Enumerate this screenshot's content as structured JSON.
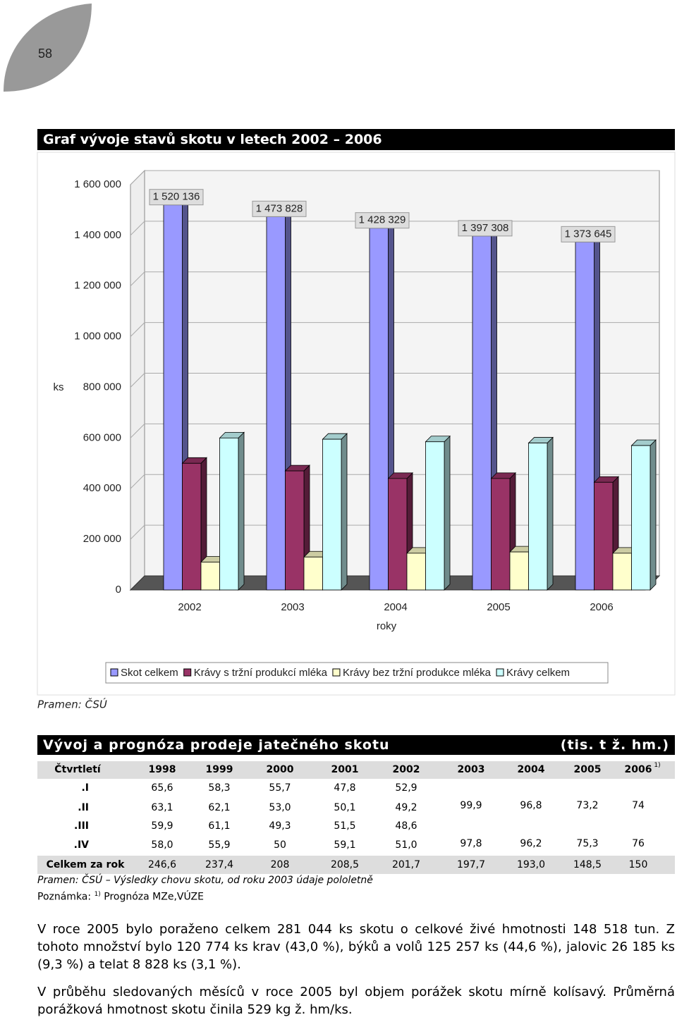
{
  "page_number": "58",
  "chart_heading": "Graf vývoje stavů skotu v letech 2002 – 2006",
  "chart_data": {
    "type": "bar",
    "y_label": "ks",
    "x_label": "roky",
    "categories": [
      "2002",
      "2003",
      "2004",
      "2005",
      "2006"
    ],
    "series": [
      {
        "name": "Skot celkem",
        "color": "#9999ff",
        "values": [
          1520136,
          1473828,
          1428329,
          1397308,
          1373645
        ],
        "value_labels": [
          "1 520 136",
          "1 473 828",
          "1 428 329",
          "1 397 308",
          "1 373 645"
        ]
      },
      {
        "name": "Krávy s tržní produkcí mléka",
        "color": "#993366",
        "values": [
          500000,
          470000,
          440000,
          440000,
          425000
        ]
      },
      {
        "name": "Krávy bez tržní produkce mléka",
        "color": "#ffffcc",
        "values": [
          110000,
          130000,
          145000,
          150000,
          145000
        ]
      },
      {
        "name": "Krávy celkem",
        "color": "#ccffff",
        "values": [
          600000,
          595000,
          585000,
          580000,
          570000
        ]
      }
    ],
    "ylim": [
      0,
      1600000
    ],
    "yticks": [
      0,
      {
        "value": 200000,
        "label": "200 000"
      },
      {
        "value": 400000,
        "label": "400 000"
      },
      {
        "value": 600000,
        "label": "600 000"
      },
      {
        "value": 800000,
        "label": "800 000"
      },
      {
        "value": 1000000,
        "label": "1 000 000"
      },
      {
        "value": 1200000,
        "label": "1 200 000"
      },
      {
        "value": 1400000,
        "label": "1 400 000"
      },
      {
        "value": 1600000,
        "label": "1 600 000"
      }
    ],
    "grid": true,
    "legend": "bottom"
  },
  "chart_source": "Pramen: ČSÚ",
  "table": {
    "title": "Vývoj a prognóza prodeje jatečného skotu",
    "unit": "(tis. t ž. hm.)",
    "header": [
      "Čtvrtletí",
      "1998",
      "1999",
      "2000",
      "2001",
      "2002",
      "2003",
      "2004",
      "2005",
      "2006"
    ],
    "header_note": "1)",
    "quarters": [
      {
        "label": "I.",
        "values": [
          "65,6",
          "58,3",
          "55,7",
          "47,8",
          "52,9"
        ]
      },
      {
        "label": "II.",
        "values": [
          "63,1",
          "62,1",
          "53,0",
          "50,1",
          "49,2"
        ]
      },
      {
        "label": "III.",
        "values": [
          "59,9",
          "61,1",
          "49,3",
          "51,5",
          "48,6"
        ]
      },
      {
        "label": "IV.",
        "values": [
          "58,0",
          "55,9",
          "50",
          "59,1",
          "51,0"
        ]
      }
    ],
    "halves": [
      [
        "99,9",
        "96,8",
        "73,2",
        "74"
      ],
      [
        "97,8",
        "96,2",
        "75,3",
        "76"
      ]
    ],
    "total": {
      "label": "Celkem za rok",
      "values": [
        "246,6",
        "237,4",
        "208",
        "208,5",
        "201,7",
        "197,7",
        "193,0",
        "148,5",
        "150"
      ]
    },
    "source": "Pramen: ČSÚ – Výsledky chovu skotu, od roku 2003 údaje pololetně",
    "note": {
      "label": "Poznámka:",
      "mark": "1)",
      "text": "Prognóza MZe,VÚZE"
    }
  },
  "paragraphs": [
    "V roce 2005 bylo poraženo celkem 281 044 ks skotu o celkové živé hmotnosti 148 518 tun. Z tohoto množství bylo 120 774 ks krav (43,0 %), býků a volů 125 257 ks (44,6 %), jalovic 26 185 ks (9,3 %) a telat 8 828 ks (3,1 %).",
    "V průběhu sledovaných měsíců v roce 2005 byl objem porážek skotu mírně kolísavý. Průměrná porážková hmotnost skotu činila 529 kg ž. hm/ks."
  ]
}
